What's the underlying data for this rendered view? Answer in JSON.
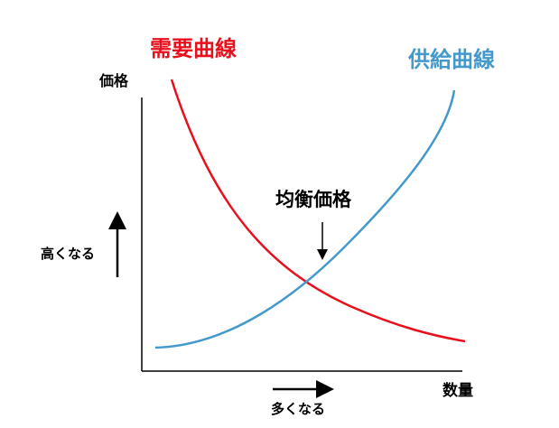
{
  "diagram": {
    "demand_label": "需要曲線",
    "supply_label": "供給曲線",
    "y_axis_label": "価格",
    "x_axis_label": "数量",
    "equilibrium_label": "均衡価格",
    "y_direction_label": "高くなる",
    "x_direction_label": "多くなる"
  },
  "colors": {
    "demand": "#e8101c",
    "supply": "#4499cc",
    "axis": "#000000",
    "text": "#000000"
  }
}
